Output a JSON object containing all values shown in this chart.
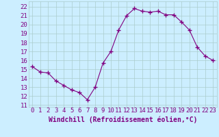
{
  "x": [
    0,
    1,
    2,
    3,
    4,
    5,
    6,
    7,
    8,
    9,
    10,
    11,
    12,
    13,
    14,
    15,
    16,
    17,
    18,
    19,
    20,
    21,
    22,
    23
  ],
  "y": [
    15.3,
    14.7,
    14.6,
    13.7,
    13.2,
    12.7,
    12.4,
    11.6,
    13.0,
    15.7,
    17.0,
    19.4,
    21.0,
    21.8,
    21.5,
    21.4,
    21.5,
    21.1,
    21.1,
    20.3,
    19.4,
    17.5,
    16.5,
    16.0
  ],
  "line_color": "#800080",
  "marker": "+",
  "marker_size": 4,
  "bg_color": "#cceeff",
  "grid_color": "#aacccc",
  "xlabel": "Windchill (Refroidissement éolien,°C)",
  "xlabel_color": "#800080",
  "xlabel_fontsize": 7,
  "tick_label_color": "#800080",
  "tick_fontsize": 6.5,
  "ylim": [
    10.8,
    22.6
  ],
  "yticks": [
    11,
    12,
    13,
    14,
    15,
    16,
    17,
    18,
    19,
    20,
    21,
    22
  ],
  "xticks": [
    0,
    1,
    2,
    3,
    4,
    5,
    6,
    7,
    8,
    9,
    10,
    11,
    12,
    13,
    14,
    15,
    16,
    17,
    18,
    19,
    20,
    21,
    22,
    23
  ],
  "xtick_labels": [
    "0",
    "1",
    "2",
    "3",
    "4",
    "5",
    "6",
    "7",
    "8",
    "9",
    "10",
    "11",
    "12",
    "13",
    "14",
    "15",
    "16",
    "17",
    "18",
    "19",
    "20",
    "21",
    "22",
    "23"
  ]
}
